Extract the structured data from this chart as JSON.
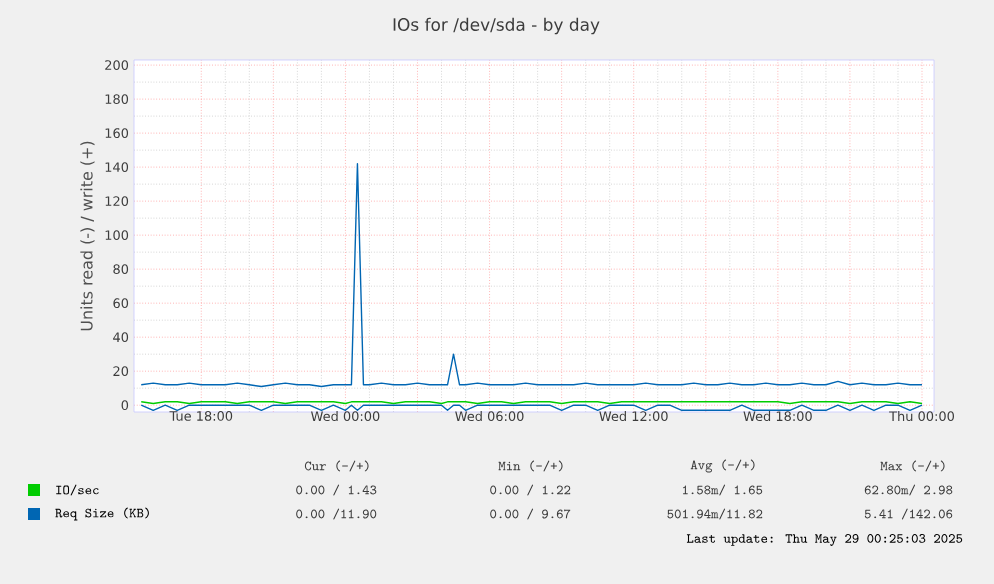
{
  "chart_data": {
    "type": "line",
    "title": "IOs for /dev/sda - by day",
    "ylabel": "Units read (-) / write (+)",
    "x": [
      "2025-05-27T15:30",
      "2025-05-27T16:00",
      "2025-05-27T16:30",
      "2025-05-27T17:00",
      "2025-05-27T17:30",
      "2025-05-27T18:00",
      "2025-05-27T18:30",
      "2025-05-27T19:00",
      "2025-05-27T19:30",
      "2025-05-27T20:00",
      "2025-05-27T20:30",
      "2025-05-27T21:00",
      "2025-05-27T21:30",
      "2025-05-27T22:00",
      "2025-05-27T22:30",
      "2025-05-27T23:00",
      "2025-05-27T23:30",
      "2025-05-28T00:00",
      "2025-05-28T00:15",
      "2025-05-28T00:30",
      "2025-05-28T00:45",
      "2025-05-28T01:00",
      "2025-05-28T01:30",
      "2025-05-28T02:00",
      "2025-05-28T02:30",
      "2025-05-28T03:00",
      "2025-05-28T03:30",
      "2025-05-28T04:00",
      "2025-05-28T04:15",
      "2025-05-28T04:30",
      "2025-05-28T04:45",
      "2025-05-28T05:00",
      "2025-05-28T05:30",
      "2025-05-28T06:00",
      "2025-05-28T06:30",
      "2025-05-28T07:00",
      "2025-05-28T07:30",
      "2025-05-28T08:00",
      "2025-05-28T08:30",
      "2025-05-28T09:00",
      "2025-05-28T09:30",
      "2025-05-28T10:00",
      "2025-05-28T10:30",
      "2025-05-28T11:00",
      "2025-05-28T11:30",
      "2025-05-28T12:00",
      "2025-05-28T12:30",
      "2025-05-28T13:00",
      "2025-05-28T13:30",
      "2025-05-28T14:00",
      "2025-05-28T14:30",
      "2025-05-28T15:00",
      "2025-05-28T15:30",
      "2025-05-28T16:00",
      "2025-05-28T16:30",
      "2025-05-28T17:00",
      "2025-05-28T17:30",
      "2025-05-28T18:00",
      "2025-05-28T18:30",
      "2025-05-28T19:00",
      "2025-05-28T19:30",
      "2025-05-28T20:00",
      "2025-05-28T20:30",
      "2025-05-28T21:00",
      "2025-05-28T21:30",
      "2025-05-28T22:00",
      "2025-05-28T22:30",
      "2025-05-28T23:00",
      "2025-05-28T23:30",
      "2025-05-29T00:00"
    ],
    "series": [
      {
        "name": "IO/sec",
        "color": "#00cc00",
        "values": [
          2,
          1,
          2,
          2,
          1,
          2,
          2,
          2,
          1,
          2,
          2,
          2,
          1,
          2,
          2,
          2,
          2,
          1,
          2,
          2,
          2,
          2,
          2,
          1,
          2,
          2,
          2,
          1,
          2,
          2,
          2,
          2,
          1,
          2,
          2,
          1,
          2,
          2,
          2,
          1,
          2,
          2,
          2,
          1,
          2,
          2,
          2,
          2,
          2,
          2,
          2,
          2,
          2,
          2,
          2,
          2,
          2,
          2,
          1,
          2,
          2,
          2,
          2,
          1,
          2,
          2,
          2,
          1,
          2,
          1
        ]
      },
      {
        "name": "Req Size (KB)",
        "color": "#0066b3",
        "values": [
          12,
          13,
          12,
          12,
          13,
          12,
          12,
          12,
          13,
          12,
          11,
          12,
          13,
          12,
          12,
          11,
          12,
          12,
          12,
          142,
          12,
          12,
          13,
          12,
          12,
          13,
          12,
          12,
          12,
          30,
          12,
          12,
          13,
          12,
          12,
          12,
          13,
          12,
          12,
          12,
          12,
          13,
          12,
          12,
          12,
          12,
          13,
          12,
          12,
          12,
          13,
          12,
          12,
          13,
          12,
          12,
          13,
          12,
          12,
          13,
          12,
          12,
          14,
          12,
          13,
          12,
          12,
          13,
          12,
          12
        ]
      },
      {
        "color": "#0066b3",
        "values": [
          0,
          -3,
          0,
          -3,
          0,
          0,
          0,
          0,
          0,
          0,
          -3,
          0,
          0,
          0,
          0,
          -3,
          0,
          -3,
          0,
          -3,
          0,
          0,
          0,
          0,
          0,
          0,
          0,
          0,
          -3,
          0,
          0,
          -3,
          0,
          0,
          0,
          0,
          0,
          0,
          0,
          -3,
          0,
          0,
          -3,
          0,
          0,
          0,
          -3,
          0,
          0,
          -3,
          -3,
          -3,
          -3,
          -3,
          0,
          -3,
          -3,
          -3,
          -3,
          0,
          -3,
          -3,
          0,
          -3,
          0,
          -3,
          0,
          0,
          -3,
          0
        ]
      }
    ],
    "xlim": [
      "2025-05-27T15:12",
      "2025-05-29T00:30"
    ],
    "ylim": [
      -4,
      203
    ],
    "xticks": [
      {
        "value": "2025-05-27T18:00",
        "label": "Tue 18:00"
      },
      {
        "value": "2025-05-27T21:00",
        "label": null
      },
      {
        "value": "2025-05-28T00:00",
        "label": "Wed 00:00"
      },
      {
        "value": "2025-05-28T03:00",
        "label": null
      },
      {
        "value": "2025-05-28T06:00",
        "label": "Wed 06:00"
      },
      {
        "value": "2025-05-28T09:00",
        "label": null
      },
      {
        "value": "2025-05-28T12:00",
        "label": "Wed 12:00"
      },
      {
        "value": "2025-05-28T15:00",
        "label": null
      },
      {
        "value": "2025-05-28T18:00",
        "label": "Wed 18:00"
      },
      {
        "value": "2025-05-28T21:00",
        "label": null
      },
      {
        "value": "2025-05-29T00:00",
        "label": "Thu 00:00"
      }
    ],
    "yticks": [
      0,
      20,
      40,
      60,
      80,
      100,
      120,
      140,
      160,
      180,
      200
    ],
    "grid": true,
    "legend": "bottom",
    "annotations": [
      "Cur (-/+)",
      "Min (-/+)",
      "Avg (-/+)",
      "Max (-/+)",
      "0.00 / 1.43",
      "0.00 / 1.22",
      "1.58m/ 1.65",
      "62.80m/ 2.98",
      "0.00 /11.90",
      "0.00 / 9.67",
      "501.94m/11.82",
      "5.41 /142.06",
      "Last update: Thu May 29 00:25:03 2025"
    ]
  }
}
